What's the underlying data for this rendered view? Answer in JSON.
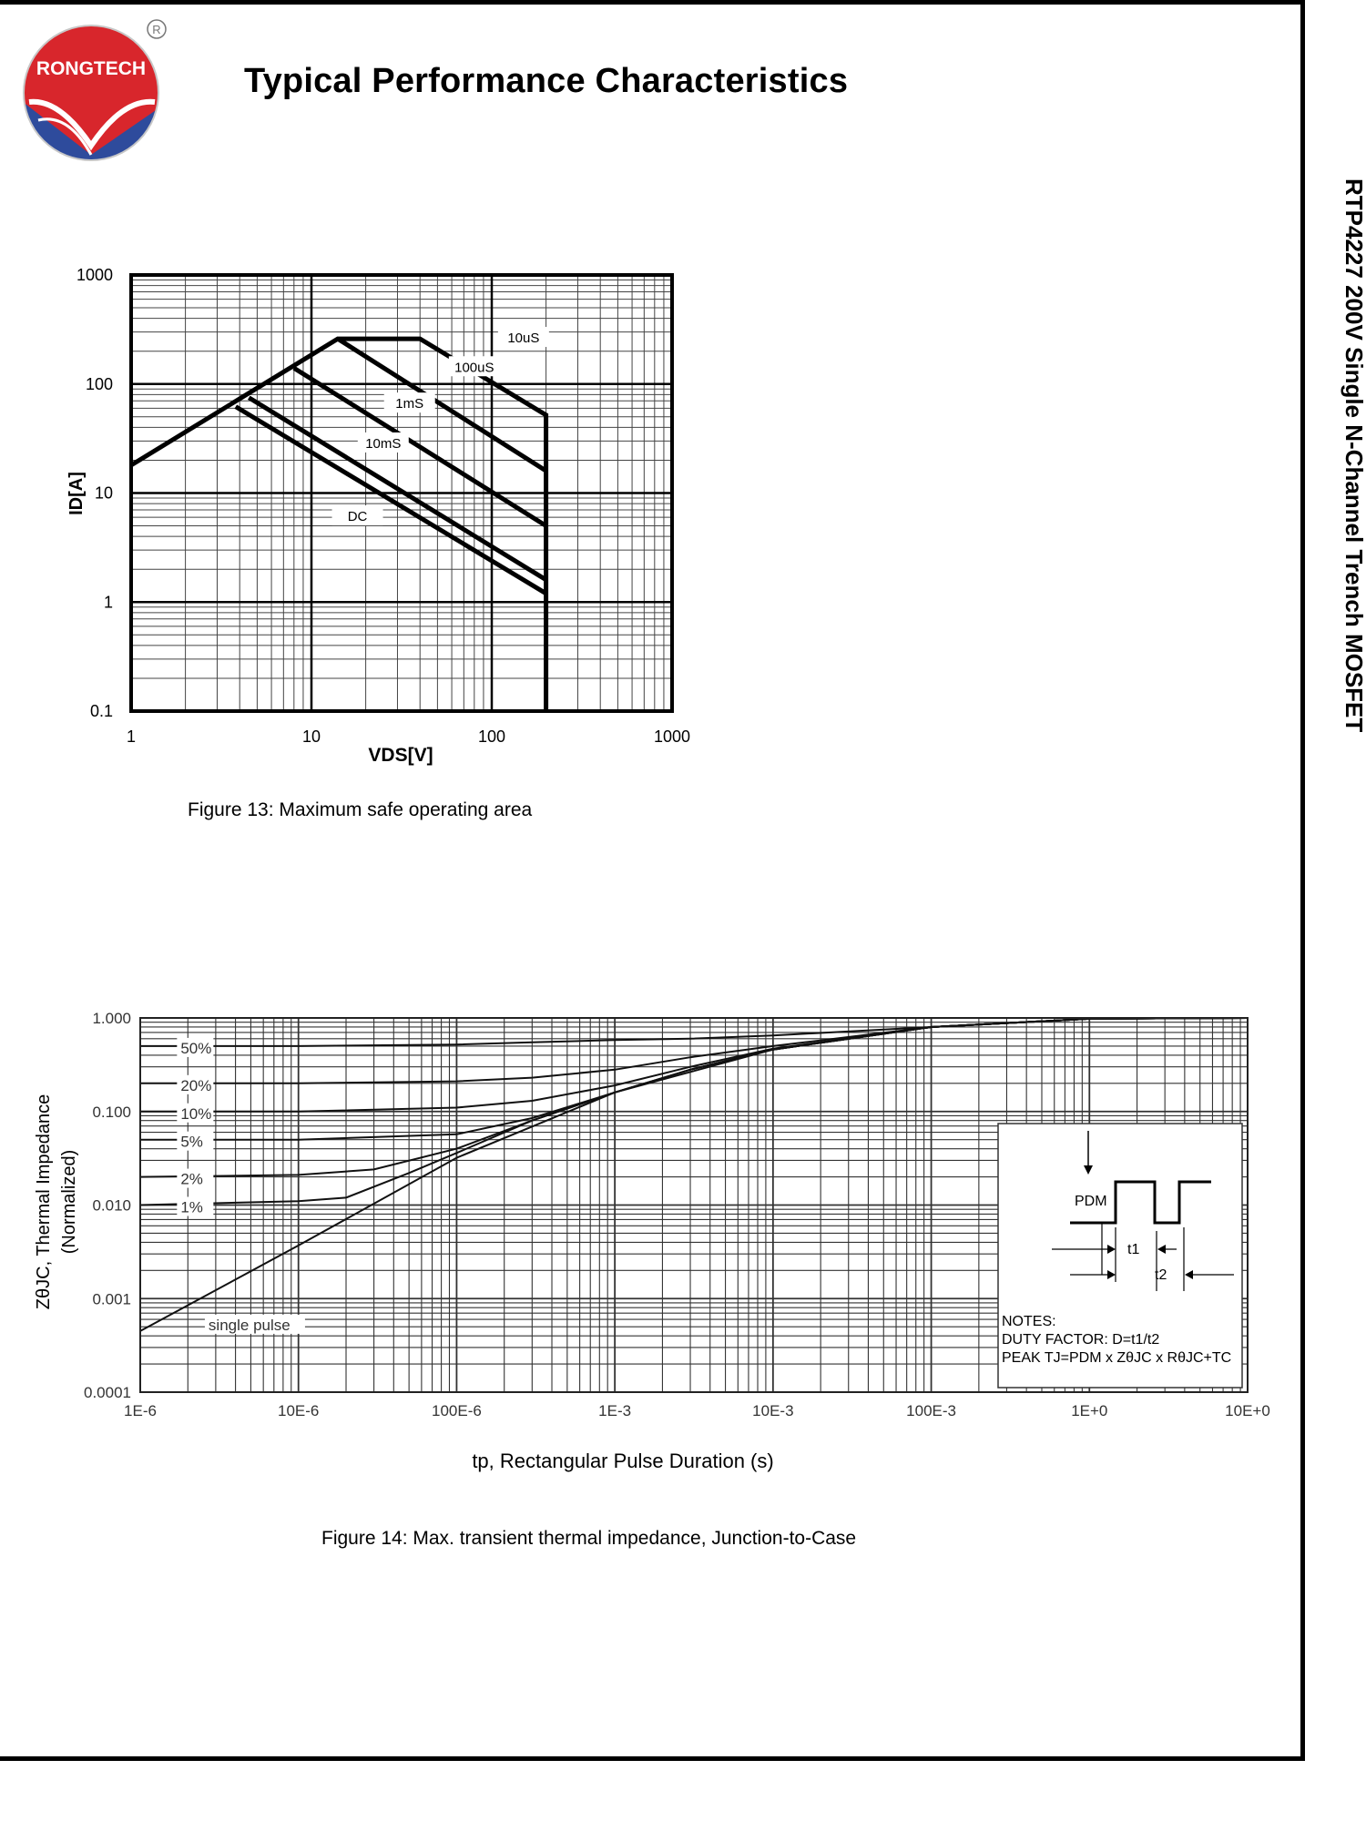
{
  "brand": {
    "name": "RONGTECH",
    "registered_mark": "R"
  },
  "header": {
    "title": "Typical Performance Characteristics"
  },
  "side_title": "RTP4227 200V Single N-Channel Trench MOSFET",
  "figures": {
    "fig13": {
      "caption": "Figure 13: Maximum safe operating area"
    },
    "fig14": {
      "caption": "Figure 14: Max. transient thermal impedance, Junction-to-Case"
    }
  },
  "chart_data": [
    {
      "type": "line",
      "id": "soa",
      "title": "Maximum safe operating area",
      "xlabel": "VDS[V]",
      "ylabel": "ID[A]",
      "xscale": "log",
      "yscale": "log",
      "xlim": [
        1,
        1000
      ],
      "ylim": [
        0.1,
        1000
      ],
      "xticks": [
        1,
        10,
        100,
        1000
      ],
      "xtick_labels": [
        "1",
        "10",
        "100",
        "1000"
      ],
      "yticks": [
        0.1,
        1,
        10,
        100,
        1000
      ],
      "ytick_labels": [
        "0.1",
        "1",
        "10",
        "100",
        "1000"
      ],
      "grid": true,
      "series": [
        {
          "name": "10uS",
          "label": "10uS",
          "x": [
            1,
            14,
            40,
            200,
            200
          ],
          "y": [
            18,
            260,
            260,
            52,
            0.1
          ]
        },
        {
          "name": "100uS",
          "label": "100uS",
          "x": [
            14,
            200
          ],
          "y": [
            260,
            16
          ]
        },
        {
          "name": "1mS",
          "label": "1mS",
          "x": [
            8,
            200
          ],
          "y": [
            140,
            5
          ]
        },
        {
          "name": "10mS",
          "label": "10mS",
          "x": [
            4.5,
            200
          ],
          "y": [
            75,
            1.6
          ]
        },
        {
          "name": "DC",
          "label": "DC",
          "x": [
            3.8,
            200
          ],
          "y": [
            62,
            1.2
          ]
        }
      ]
    },
    {
      "type": "line",
      "id": "zth",
      "title": "Max. transient thermal impedance, Junction-to-Case",
      "xlabel": "tp, Rectangular Pulse Duration (s)",
      "ylabel_line1": "ZθJC, Thermal Impedance",
      "ylabel_line2": "(Normalized)",
      "xscale": "log",
      "yscale": "log",
      "xlim": [
        1e-06,
        10
      ],
      "ylim": [
        0.0001,
        1
      ],
      "xticks": [
        1e-06,
        1e-05,
        0.0001,
        0.001,
        0.01,
        0.1,
        1,
        10
      ],
      "xtick_labels": [
        "1E-6",
        "10E-6",
        "100E-6",
        "1E-3",
        "10E-3",
        "100E-3",
        "1E+0",
        "10E+0"
      ],
      "yticks": [
        0.0001,
        0.001,
        0.01,
        0.1,
        1
      ],
      "ytick_labels": [
        "0.0001",
        "0.001",
        "0.010",
        "0.100",
        "1.000"
      ],
      "grid": true,
      "series": [
        {
          "name": "50%",
          "label": "50%",
          "x": [
            1e-06,
            1e-05,
            0.0001,
            0.0003,
            0.001,
            0.003,
            0.01,
            0.1,
            1,
            10
          ],
          "y": [
            0.5,
            0.5,
            0.52,
            0.55,
            0.58,
            0.6,
            0.65,
            0.8,
            0.98,
            1.0
          ]
        },
        {
          "name": "20%",
          "label": "20%",
          "x": [
            1e-06,
            1e-05,
            0.0001,
            0.0003,
            0.001,
            0.003,
            0.01,
            0.1,
            1,
            10
          ],
          "y": [
            0.2,
            0.2,
            0.21,
            0.23,
            0.28,
            0.38,
            0.5,
            0.8,
            0.98,
            1.0
          ]
        },
        {
          "name": "10%",
          "label": "10%",
          "x": [
            1e-06,
            1e-05,
            0.0001,
            0.0003,
            0.001,
            0.003,
            0.01,
            0.1,
            1,
            10
          ],
          "y": [
            0.1,
            0.1,
            0.11,
            0.13,
            0.19,
            0.3,
            0.47,
            0.8,
            0.98,
            1.0
          ]
        },
        {
          "name": "5%",
          "label": "5%",
          "x": [
            1e-06,
            1e-05,
            0.0001,
            0.0003,
            0.001,
            0.003,
            0.01,
            0.1,
            1,
            10
          ],
          "y": [
            0.05,
            0.05,
            0.057,
            0.085,
            0.16,
            0.28,
            0.46,
            0.8,
            0.98,
            1.0
          ]
        },
        {
          "name": "2%",
          "label": "2%",
          "x": [
            1e-06,
            1e-05,
            3e-05,
            0.0001,
            0.0003,
            0.001,
            0.003,
            0.01,
            0.1,
            1,
            10
          ],
          "y": [
            0.02,
            0.021,
            0.024,
            0.04,
            0.08,
            0.16,
            0.28,
            0.46,
            0.8,
            0.98,
            1.0
          ]
        },
        {
          "name": "1%",
          "label": "1%",
          "x": [
            1e-06,
            1e-05,
            2e-05,
            5e-05,
            0.0001,
            0.0003,
            0.001,
            0.003,
            0.01,
            0.1,
            1,
            10
          ],
          "y": [
            0.01,
            0.011,
            0.012,
            0.022,
            0.036,
            0.08,
            0.16,
            0.28,
            0.46,
            0.8,
            0.98,
            1.0
          ]
        },
        {
          "name": "single pulse",
          "label": "single pulse",
          "x": [
            1e-06,
            1e-05,
            0.0001,
            0.001,
            0.01,
            0.1,
            1,
            10
          ],
          "y": [
            0.00045,
            0.0037,
            0.032,
            0.16,
            0.46,
            0.8,
            0.98,
            1.0
          ]
        }
      ],
      "inset": {
        "pdm_label": "PDM",
        "t1_label": "t1",
        "t2_label": "t2",
        "notes_title": "NOTES:",
        "notes_line1": "DUTY FACTOR: D=t1/t2",
        "notes_line2": "PEAK TJ=PDM x ZθJC x RθJC+TC"
      }
    }
  ],
  "colors": {
    "logo_red": "#d8262c",
    "logo_blue": "#2e4b9c",
    "ink": "#000000",
    "grid": "#555555"
  }
}
